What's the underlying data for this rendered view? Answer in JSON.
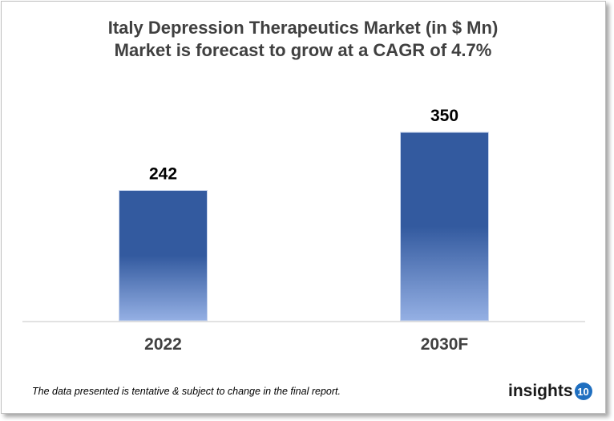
{
  "chart_data": {
    "type": "bar",
    "title": "Italy Depression Therapeutics Market (in $ Mn)",
    "subtitle": "Market is forecast to grow at a CAGR of 4.7%",
    "categories": [
      "2022",
      "2030F"
    ],
    "values": [
      242,
      350
    ],
    "data_labels": [
      "242",
      "350"
    ],
    "xlabel": "",
    "ylabel": "",
    "ylim": [
      0,
      350
    ],
    "grid": false,
    "colors": {
      "bar_top": "#335a9f",
      "bar_bottom": "#95b0e4",
      "axis": "#d9d9d9",
      "title": "#404040"
    }
  },
  "footer": {
    "note": "The data presented is tentative & subject to change in the final report."
  },
  "logo": {
    "text": "insights",
    "badge": "10",
    "color": "#1f6fc0"
  }
}
